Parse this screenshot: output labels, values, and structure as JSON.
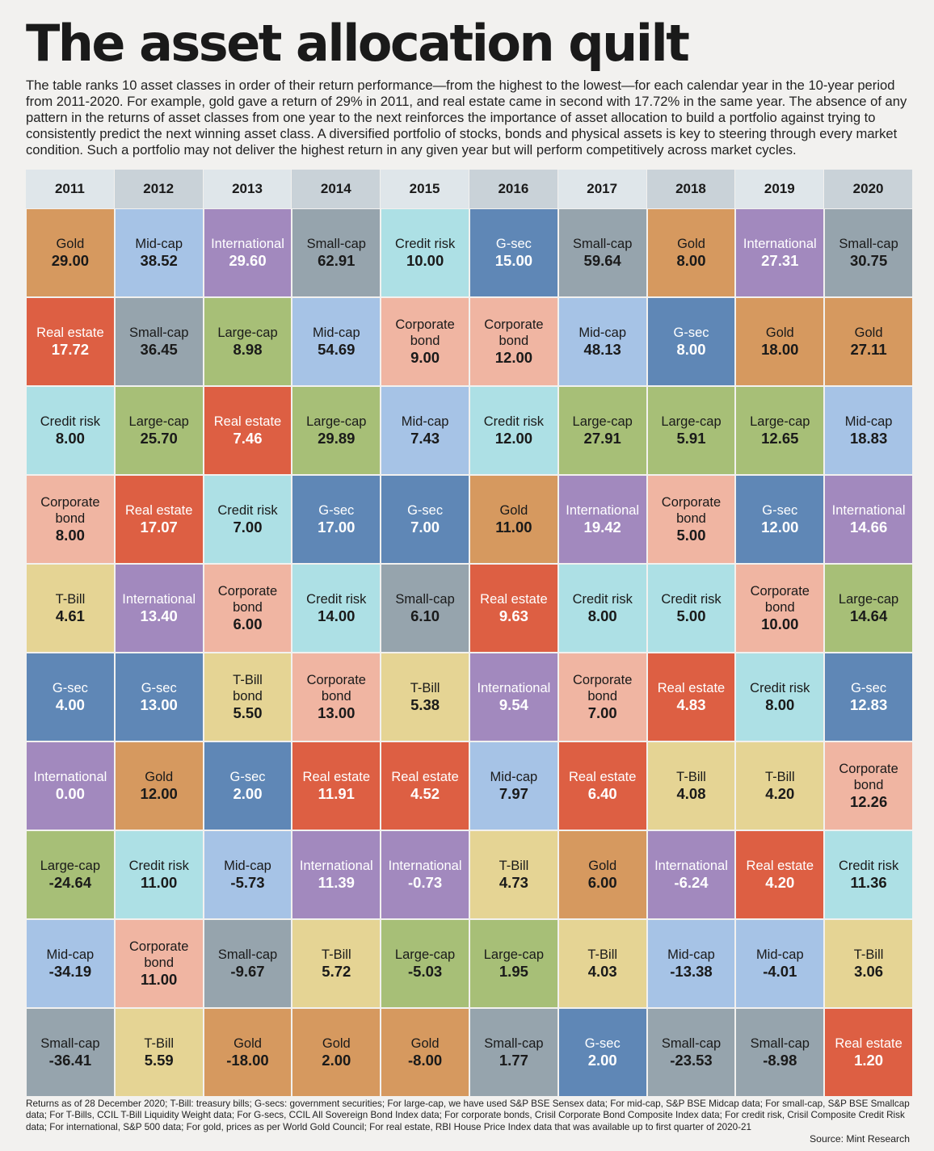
{
  "title": "The asset allocation quilt",
  "subtitle": "The table ranks 10 asset classes in order of their return performance—from the highest to the lowest—for each calendar year in the 10-year period from 2011-2020. For example, gold gave a return of 29% in 2011, and real estate came in second with 17.72% in the same year. The absence of any pattern in the returns of asset classes from one year to the next reinforces the importance of asset allocation to build a portfolio against trying to consistently predict the next winning asset class. A diversified portfolio of stocks, bonds and physical assets is key to steering through every market condition. Such a portfolio may not deliver the highest return in any given year but will perform competitively across market cycles.",
  "footnote": "Returns as of 28 December 2020; T-Bill: treasury bills; G-secs: government securities; For large-cap, we have used S&P BSE Sensex data; For mid-cap, S&P BSE Midcap data; For small-cap, S&P BSE Smallcap data; For T-Bills, CCIL T-Bill Liquidity Weight data; For G-secs, CCIL All Sovereign Bond Index data; For corporate bonds, Crisil Corporate Bond Composite Index data; For credit risk, Crisil Composite Credit Risk data; For international, S&P 500 data; For gold, prices as per World Gold Council; For real estate, RBI House Price Index data that was available up to first quarter of 2020-21",
  "source": "Source: Mint Research",
  "colors": {
    "Gold": "#d6995f",
    "Real estate": "#dd5f43",
    "Credit risk": "#ade0e5",
    "Corporate bond": "#f0b5a2",
    "T-Bill": "#e5d494",
    "G-sec": "#5f87b6",
    "International": "#a289be",
    "Large-cap": "#a7bf77",
    "Mid-cap": "#a6c3e6",
    "Small-cap": "#96a4ad",
    "T-Bill bond": "#e5d494"
  },
  "white_text_classes": [
    "Real estate",
    "G-sec",
    "International"
  ],
  "chart_data": {
    "type": "table",
    "title": "The asset allocation quilt",
    "years": [
      "2011",
      "2012",
      "2013",
      "2014",
      "2015",
      "2016",
      "2017",
      "2018",
      "2019",
      "2020"
    ],
    "columns": [
      [
        {
          "asset": "Gold",
          "label": "Gold",
          "value": "29.00"
        },
        {
          "asset": "Real estate",
          "label": "Real estate",
          "value": "17.72"
        },
        {
          "asset": "Credit risk",
          "label": "Credit risk",
          "value": "8.00"
        },
        {
          "asset": "Corporate bond",
          "label": "Corporate\nbond",
          "value": "8.00"
        },
        {
          "asset": "T-Bill",
          "label": "T-Bill",
          "value": "4.61"
        },
        {
          "asset": "G-sec",
          "label": "G-sec",
          "value": "4.00"
        },
        {
          "asset": "International",
          "label": "International",
          "value": "0.00"
        },
        {
          "asset": "Large-cap",
          "label": "Large-cap",
          "value": "-24.64"
        },
        {
          "asset": "Mid-cap",
          "label": "Mid-cap",
          "value": "-34.19"
        },
        {
          "asset": "Small-cap",
          "label": "Small-cap",
          "value": "-36.41"
        }
      ],
      [
        {
          "asset": "Mid-cap",
          "label": "Mid-cap",
          "value": "38.52"
        },
        {
          "asset": "Small-cap",
          "label": "Small-cap",
          "value": "36.45"
        },
        {
          "asset": "Large-cap",
          "label": "Large-cap",
          "value": "25.70"
        },
        {
          "asset": "Real estate",
          "label": "Real estate",
          "value": "17.07"
        },
        {
          "asset": "International",
          "label": "International",
          "value": "13.40"
        },
        {
          "asset": "G-sec",
          "label": "G-sec",
          "value": "13.00"
        },
        {
          "asset": "Gold",
          "label": "Gold",
          "value": "12.00"
        },
        {
          "asset": "Credit risk",
          "label": "Credit risk",
          "value": "11.00"
        },
        {
          "asset": "Corporate bond",
          "label": "Corporate\nbond",
          "value": "11.00"
        },
        {
          "asset": "T-Bill",
          "label": "T-Bill",
          "value": "5.59"
        }
      ],
      [
        {
          "asset": "International",
          "label": "International",
          "value": "29.60"
        },
        {
          "asset": "Large-cap",
          "label": "Large-cap",
          "value": "8.98"
        },
        {
          "asset": "Real estate",
          "label": "Real estate",
          "value": "7.46"
        },
        {
          "asset": "Credit risk",
          "label": "Credit risk",
          "value": "7.00"
        },
        {
          "asset": "Corporate bond",
          "label": "Corporate\nbond",
          "value": "6.00"
        },
        {
          "asset": "T-Bill bond",
          "label": "T-Bill\nbond",
          "value": "5.50"
        },
        {
          "asset": "G-sec",
          "label": "G-sec",
          "value": "2.00"
        },
        {
          "asset": "Mid-cap",
          "label": "Mid-cap",
          "value": "-5.73"
        },
        {
          "asset": "Small-cap",
          "label": "Small-cap",
          "value": "-9.67"
        },
        {
          "asset": "Gold",
          "label": "Gold",
          "value": "-18.00"
        }
      ],
      [
        {
          "asset": "Small-cap",
          "label": "Small-cap",
          "value": "62.91"
        },
        {
          "asset": "Mid-cap",
          "label": "Mid-cap",
          "value": "54.69"
        },
        {
          "asset": "Large-cap",
          "label": "Large-cap",
          "value": "29.89"
        },
        {
          "asset": "G-sec",
          "label": "G-sec",
          "value": "17.00"
        },
        {
          "asset": "Credit risk",
          "label": "Credit risk",
          "value": "14.00"
        },
        {
          "asset": "Corporate bond",
          "label": "Corporate\nbond",
          "value": "13.00"
        },
        {
          "asset": "Real estate",
          "label": "Real estate",
          "value": "11.91"
        },
        {
          "asset": "International",
          "label": "International",
          "value": "11.39"
        },
        {
          "asset": "T-Bill",
          "label": "T-Bill",
          "value": "5.72"
        },
        {
          "asset": "Gold",
          "label": "Gold",
          "value": "2.00"
        }
      ],
      [
        {
          "asset": "Credit risk",
          "label": "Credit risk",
          "value": "10.00"
        },
        {
          "asset": "Corporate bond",
          "label": "Corporate\nbond",
          "value": "9.00"
        },
        {
          "asset": "Mid-cap",
          "label": "Mid-cap",
          "value": "7.43"
        },
        {
          "asset": "G-sec",
          "label": "G-sec",
          "value": "7.00"
        },
        {
          "asset": "Small-cap",
          "label": "Small-cap",
          "value": "6.10"
        },
        {
          "asset": "T-Bill",
          "label": "T-Bill",
          "value": "5.38"
        },
        {
          "asset": "Real estate",
          "label": "Real estate",
          "value": "4.52"
        },
        {
          "asset": "International",
          "label": "International",
          "value": "-0.73"
        },
        {
          "asset": "Large-cap",
          "label": "Large-cap",
          "value": "-5.03"
        },
        {
          "asset": "Gold",
          "label": "Gold",
          "value": "-8.00"
        }
      ],
      [
        {
          "asset": "G-sec",
          "label": "G-sec",
          "value": "15.00"
        },
        {
          "asset": "Corporate bond",
          "label": "Corporate\nbond",
          "value": "12.00"
        },
        {
          "asset": "Credit risk",
          "label": "Credit risk",
          "value": "12.00"
        },
        {
          "asset": "Gold",
          "label": "Gold",
          "value": "11.00"
        },
        {
          "asset": "Real estate",
          "label": "Real estate",
          "value": "9.63"
        },
        {
          "asset": "International",
          "label": "International",
          "value": "9.54"
        },
        {
          "asset": "Mid-cap",
          "label": "Mid-cap",
          "value": "7.97"
        },
        {
          "asset": "T-Bill",
          "label": "T-Bill",
          "value": "4.73"
        },
        {
          "asset": "Large-cap",
          "label": "Large-cap",
          "value": "1.95"
        },
        {
          "asset": "Small-cap",
          "label": "Small-cap",
          "value": "1.77"
        }
      ],
      [
        {
          "asset": "Small-cap",
          "label": "Small-cap",
          "value": "59.64"
        },
        {
          "asset": "Mid-cap",
          "label": "Mid-cap",
          "value": "48.13"
        },
        {
          "asset": "Large-cap",
          "label": "Large-cap",
          "value": "27.91"
        },
        {
          "asset": "International",
          "label": "International",
          "value": "19.42"
        },
        {
          "asset": "Credit risk",
          "label": "Credit risk",
          "value": "8.00"
        },
        {
          "asset": "Corporate bond",
          "label": "Corporate\nbond",
          "value": "7.00"
        },
        {
          "asset": "Real estate",
          "label": "Real estate",
          "value": "6.40"
        },
        {
          "asset": "Gold",
          "label": "Gold",
          "value": "6.00"
        },
        {
          "asset": "T-Bill",
          "label": "T-Bill",
          "value": "4.03"
        },
        {
          "asset": "G-sec",
          "label": "G-sec",
          "value": "2.00"
        }
      ],
      [
        {
          "asset": "Gold",
          "label": "Gold",
          "value": "8.00"
        },
        {
          "asset": "G-sec",
          "label": "G-sec",
          "value": "8.00"
        },
        {
          "asset": "Large-cap",
          "label": "Large-cap",
          "value": "5.91"
        },
        {
          "asset": "Corporate bond",
          "label": "Corporate\nbond",
          "value": "5.00"
        },
        {
          "asset": "Credit risk",
          "label": "Credit risk",
          "value": "5.00"
        },
        {
          "asset": "Real estate",
          "label": "Real estate",
          "value": "4.83"
        },
        {
          "asset": "T-Bill",
          "label": "T-Bill",
          "value": "4.08"
        },
        {
          "asset": "International",
          "label": "International",
          "value": "-6.24"
        },
        {
          "asset": "Mid-cap",
          "label": "Mid-cap",
          "value": "-13.38"
        },
        {
          "asset": "Small-cap",
          "label": "Small-cap",
          "value": "-23.53"
        }
      ],
      [
        {
          "asset": "International",
          "label": "International",
          "value": "27.31"
        },
        {
          "asset": "Gold",
          "label": "Gold",
          "value": "18.00"
        },
        {
          "asset": "Large-cap",
          "label": "Large-cap",
          "value": "12.65"
        },
        {
          "asset": "G-sec",
          "label": "G-sec",
          "value": "12.00"
        },
        {
          "asset": "Corporate bond",
          "label": "Corporate\nbond",
          "value": "10.00"
        },
        {
          "asset": "Credit risk",
          "label": "Credit risk",
          "value": "8.00"
        },
        {
          "asset": "T-Bill",
          "label": "T-Bill",
          "value": "4.20"
        },
        {
          "asset": "Real estate",
          "label": "Real estate",
          "value": "4.20"
        },
        {
          "asset": "Mid-cap",
          "label": "Mid-cap",
          "value": "-4.01"
        },
        {
          "asset": "Small-cap",
          "label": "Small-cap",
          "value": "-8.98"
        }
      ],
      [
        {
          "asset": "Small-cap",
          "label": "Small-cap",
          "value": "30.75"
        },
        {
          "asset": "Gold",
          "label": "Gold",
          "value": "27.11"
        },
        {
          "asset": "Mid-cap",
          "label": "Mid-cap",
          "value": "18.83"
        },
        {
          "asset": "International",
          "label": "International",
          "value": "14.66"
        },
        {
          "asset": "Large-cap",
          "label": "Large-cap",
          "value": "14.64"
        },
        {
          "asset": "G-sec",
          "label": "G-sec",
          "value": "12.83"
        },
        {
          "asset": "Corporate bond",
          "label": "Corporate\nbond",
          "value": "12.26"
        },
        {
          "asset": "Credit risk",
          "label": "Credit risk",
          "value": "11.36"
        },
        {
          "asset": "T-Bill",
          "label": "T-Bill",
          "value": "3.06"
        },
        {
          "asset": "Real estate",
          "label": "Real estate",
          "value": "1.20"
        }
      ]
    ]
  }
}
